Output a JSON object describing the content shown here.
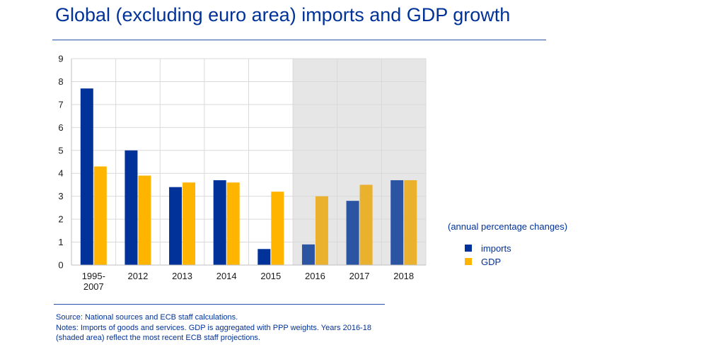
{
  "title": "Global (excluding euro area) imports and GDP growth",
  "legend": {
    "title": "(annual percentage changes)",
    "items": [
      {
        "label": "imports",
        "color": "#003299"
      },
      {
        "label": "GDP",
        "color": "#FFB400"
      }
    ]
  },
  "footer": {
    "source": "Source: National sources and ECB staff calculations.",
    "notes": "Notes: Imports of goods and services. GDP is aggregated with PPP weights. Years 2016-18 (shaded area) reflect the most recent ECB staff projections."
  },
  "chart_data": {
    "type": "bar",
    "categories": [
      "1995-\n2007",
      "2012",
      "2013",
      "2014",
      "2015",
      "2016",
      "2017",
      "2018"
    ],
    "series": [
      {
        "name": "imports",
        "values": [
          7.7,
          5.0,
          3.4,
          3.7,
          0.7,
          0.9,
          2.8,
          3.7
        ],
        "color": "#003299",
        "projection_color": "#2B55A3"
      },
      {
        "name": "GDP",
        "values": [
          4.3,
          3.9,
          3.6,
          3.6,
          3.2,
          3.0,
          3.5,
          3.7
        ],
        "color": "#FFB400",
        "projection_color": "#E9B12E"
      }
    ],
    "ylim": [
      0,
      9
    ],
    "yticks": [
      0,
      1,
      2,
      3,
      4,
      5,
      6,
      7,
      8,
      9
    ],
    "xlabel": "",
    "ylabel": "",
    "shaded_categories": [
      "2016",
      "2017",
      "2018"
    ],
    "shade_color": "#E6E6E6",
    "grid": true,
    "legend_position": "right"
  }
}
